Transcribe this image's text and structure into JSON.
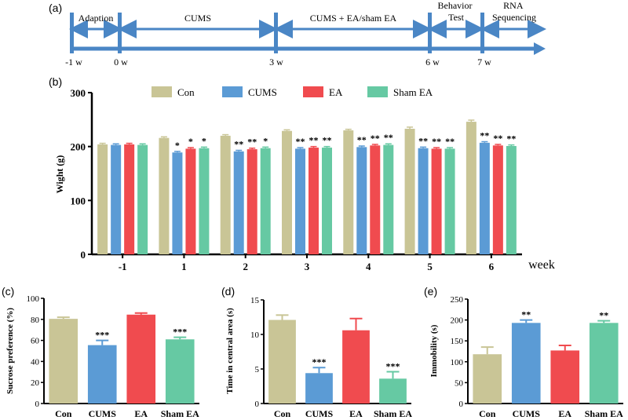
{
  "colors": {
    "Con": "#c9c596",
    "CUMS": "#5b9bd5",
    "EA": "#f04b4f",
    "Sham EA": "#66c9a3",
    "arrow": "#4a86c5",
    "axis": "#000000"
  },
  "timeline": {
    "panel_label": "(a)",
    "phases": [
      "Adaption",
      "CUMS",
      "CUMS + EA/sham EA",
      "Behavior Test",
      "RNA Sequencing"
    ],
    "ticks": [
      "-1 w",
      "0 w",
      "3 w",
      "6 w",
      "7 w"
    ]
  },
  "chart_data": [
    {
      "id": "b",
      "panel_label": "(b)",
      "type": "bar",
      "title": "",
      "xlabel": "week",
      "ylabel": "Wight (g)",
      "ylim": [
        0,
        300
      ],
      "yticks": [
        "0",
        "100",
        "200",
        "300"
      ],
      "categories": [
        "-1",
        "1",
        "2",
        "3",
        "4",
        "5",
        "6"
      ],
      "legend": [
        "Con",
        "CUMS",
        "EA",
        "Sham EA"
      ],
      "legend_position": "top",
      "series": [
        {
          "name": "Con",
          "values": [
            204,
            216,
            220,
            229,
            230,
            233,
            246
          ],
          "errors": [
            2,
            2,
            2,
            2,
            2,
            3,
            3
          ]
        },
        {
          "name": "CUMS",
          "values": [
            203,
            189,
            191,
            196,
            199,
            197,
            207
          ],
          "errors": [
            2,
            2,
            2,
            2,
            2,
            2,
            2
          ]
        },
        {
          "name": "EA",
          "values": [
            204,
            196,
            195,
            198,
            202,
            196,
            202
          ],
          "errors": [
            2,
            2,
            2,
            2,
            2,
            2,
            2
          ]
        },
        {
          "name": "Sham EA",
          "values": [
            203,
            197,
            197,
            198,
            203,
            196,
            201
          ],
          "errors": [
            2,
            2,
            2,
            2,
            2,
            2,
            2
          ]
        }
      ],
      "annotations": [
        [
          "",
          "",
          "",
          ""
        ],
        [
          "",
          "*",
          "*",
          "*"
        ],
        [
          "",
          "**",
          "**",
          "*"
        ],
        [
          "",
          "**",
          "**",
          "**"
        ],
        [
          "",
          "**",
          "**",
          "**"
        ],
        [
          "",
          "**",
          "**",
          "**"
        ],
        [
          "",
          "**",
          "**",
          "**"
        ]
      ]
    },
    {
      "id": "c",
      "panel_label": "(c)",
      "type": "bar",
      "title": "",
      "xlabel": "",
      "ylabel": "Sucrose preference (%)",
      "ylim": [
        0,
        100
      ],
      "yticks": [
        "0",
        "20",
        "40",
        "60",
        "80",
        "100"
      ],
      "categories": [
        "Con",
        "CUMS",
        "EA",
        "Sham EA"
      ],
      "values": [
        80.5,
        55.5,
        84.5,
        61
      ],
      "errors": [
        1.5,
        4.5,
        1.5,
        2
      ],
      "annotations": [
        "",
        "***",
        "",
        "***"
      ]
    },
    {
      "id": "d",
      "panel_label": "(d)",
      "type": "bar",
      "title": "",
      "xlabel": "",
      "ylabel": "Time in central area (s)",
      "ylim": [
        0,
        15
      ],
      "yticks": [
        "0",
        "5",
        "10",
        "15"
      ],
      "categories": [
        "Con",
        "CUMS",
        "EA",
        "Sham EA"
      ],
      "values": [
        12.1,
        4.4,
        10.6,
        3.6
      ],
      "errors": [
        0.7,
        0.8,
        1.7,
        1.0
      ],
      "annotations": [
        "",
        "***",
        "",
        "***"
      ]
    },
    {
      "id": "e",
      "panel_label": "(e)",
      "type": "bar",
      "title": "",
      "xlabel": "",
      "ylabel": "Immobility (s)",
      "ylim": [
        0,
        250
      ],
      "yticks": [
        "0",
        "50",
        "100",
        "150",
        "200",
        "250"
      ],
      "categories": [
        "Con",
        "CUMS",
        "EA",
        "Sham EA"
      ],
      "values": [
        118,
        193,
        127,
        193
      ],
      "errors": [
        17,
        7,
        12,
        5
      ],
      "annotations": [
        "",
        "**",
        "",
        "**"
      ]
    }
  ]
}
